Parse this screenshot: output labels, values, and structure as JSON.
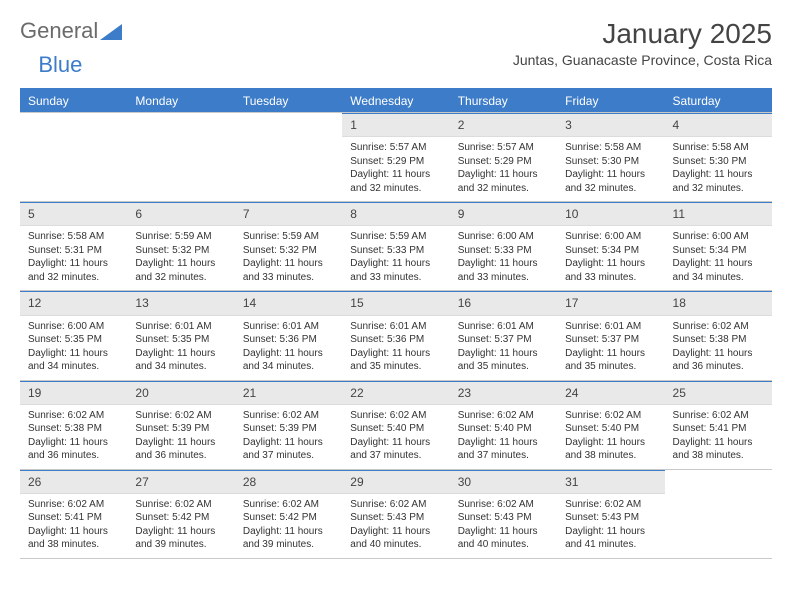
{
  "brand": {
    "part1": "General",
    "part2": "Blue"
  },
  "title": "January 2025",
  "location": "Juntas, Guanacaste Province, Costa Rica",
  "header_bg": "#3d7cc9",
  "header_fg": "#ffffff",
  "daynum_bg": "#e9e9e9",
  "rule_color": "#c9c9c9",
  "weekdays": [
    "Sunday",
    "Monday",
    "Tuesday",
    "Wednesday",
    "Thursday",
    "Friday",
    "Saturday"
  ],
  "label_sunrise": "Sunrise:",
  "label_sunset": "Sunset:",
  "label_daylight_prefix": "Daylight:",
  "label_daylight_hours": "hours and",
  "label_daylight_suffix": "minutes.",
  "weeks": [
    [
      {
        "n": "",
        "empty": true
      },
      {
        "n": "",
        "empty": true
      },
      {
        "n": "",
        "empty": true
      },
      {
        "n": "1",
        "sr": "5:57 AM",
        "ss": "5:29 PM",
        "dh": "11",
        "dm": "32"
      },
      {
        "n": "2",
        "sr": "5:57 AM",
        "ss": "5:29 PM",
        "dh": "11",
        "dm": "32"
      },
      {
        "n": "3",
        "sr": "5:58 AM",
        "ss": "5:30 PM",
        "dh": "11",
        "dm": "32"
      },
      {
        "n": "4",
        "sr": "5:58 AM",
        "ss": "5:30 PM",
        "dh": "11",
        "dm": "32"
      }
    ],
    [
      {
        "n": "5",
        "sr": "5:58 AM",
        "ss": "5:31 PM",
        "dh": "11",
        "dm": "32"
      },
      {
        "n": "6",
        "sr": "5:59 AM",
        "ss": "5:32 PM",
        "dh": "11",
        "dm": "32"
      },
      {
        "n": "7",
        "sr": "5:59 AM",
        "ss": "5:32 PM",
        "dh": "11",
        "dm": "33"
      },
      {
        "n": "8",
        "sr": "5:59 AM",
        "ss": "5:33 PM",
        "dh": "11",
        "dm": "33"
      },
      {
        "n": "9",
        "sr": "6:00 AM",
        "ss": "5:33 PM",
        "dh": "11",
        "dm": "33"
      },
      {
        "n": "10",
        "sr": "6:00 AM",
        "ss": "5:34 PM",
        "dh": "11",
        "dm": "33"
      },
      {
        "n": "11",
        "sr": "6:00 AM",
        "ss": "5:34 PM",
        "dh": "11",
        "dm": "34"
      }
    ],
    [
      {
        "n": "12",
        "sr": "6:00 AM",
        "ss": "5:35 PM",
        "dh": "11",
        "dm": "34"
      },
      {
        "n": "13",
        "sr": "6:01 AM",
        "ss": "5:35 PM",
        "dh": "11",
        "dm": "34"
      },
      {
        "n": "14",
        "sr": "6:01 AM",
        "ss": "5:36 PM",
        "dh": "11",
        "dm": "34"
      },
      {
        "n": "15",
        "sr": "6:01 AM",
        "ss": "5:36 PM",
        "dh": "11",
        "dm": "35"
      },
      {
        "n": "16",
        "sr": "6:01 AM",
        "ss": "5:37 PM",
        "dh": "11",
        "dm": "35"
      },
      {
        "n": "17",
        "sr": "6:01 AM",
        "ss": "5:37 PM",
        "dh": "11",
        "dm": "35"
      },
      {
        "n": "18",
        "sr": "6:02 AM",
        "ss": "5:38 PM",
        "dh": "11",
        "dm": "36"
      }
    ],
    [
      {
        "n": "19",
        "sr": "6:02 AM",
        "ss": "5:38 PM",
        "dh": "11",
        "dm": "36"
      },
      {
        "n": "20",
        "sr": "6:02 AM",
        "ss": "5:39 PM",
        "dh": "11",
        "dm": "36"
      },
      {
        "n": "21",
        "sr": "6:02 AM",
        "ss": "5:39 PM",
        "dh": "11",
        "dm": "37"
      },
      {
        "n": "22",
        "sr": "6:02 AM",
        "ss": "5:40 PM",
        "dh": "11",
        "dm": "37"
      },
      {
        "n": "23",
        "sr": "6:02 AM",
        "ss": "5:40 PM",
        "dh": "11",
        "dm": "37"
      },
      {
        "n": "24",
        "sr": "6:02 AM",
        "ss": "5:40 PM",
        "dh": "11",
        "dm": "38"
      },
      {
        "n": "25",
        "sr": "6:02 AM",
        "ss": "5:41 PM",
        "dh": "11",
        "dm": "38"
      }
    ],
    [
      {
        "n": "26",
        "sr": "6:02 AM",
        "ss": "5:41 PM",
        "dh": "11",
        "dm": "38"
      },
      {
        "n": "27",
        "sr": "6:02 AM",
        "ss": "5:42 PM",
        "dh": "11",
        "dm": "39"
      },
      {
        "n": "28",
        "sr": "6:02 AM",
        "ss": "5:42 PM",
        "dh": "11",
        "dm": "39"
      },
      {
        "n": "29",
        "sr": "6:02 AM",
        "ss": "5:43 PM",
        "dh": "11",
        "dm": "40"
      },
      {
        "n": "30",
        "sr": "6:02 AM",
        "ss": "5:43 PM",
        "dh": "11",
        "dm": "40"
      },
      {
        "n": "31",
        "sr": "6:02 AM",
        "ss": "5:43 PM",
        "dh": "11",
        "dm": "41"
      },
      {
        "n": "",
        "empty": true
      }
    ]
  ]
}
